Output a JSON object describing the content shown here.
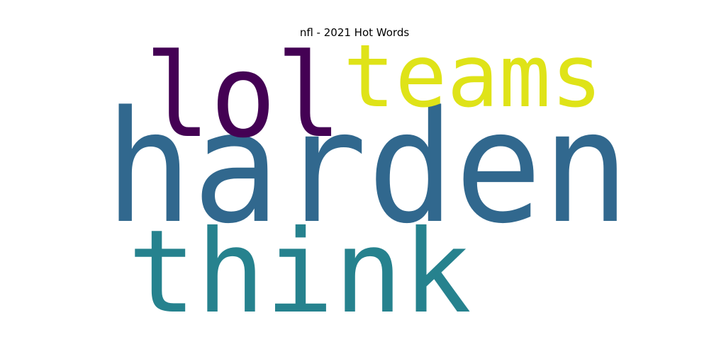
{
  "chart_data": {
    "type": "wordcloud",
    "title": "nfl - 2021 Hot Words",
    "words": [
      {
        "text": "harden",
        "rank": 1,
        "color": "#31688e"
      },
      {
        "text": "think",
        "rank": 2,
        "color": "#26828e"
      },
      {
        "text": "lol",
        "rank": 3,
        "color": "#440154"
      },
      {
        "text": "teams",
        "rank": 4,
        "color": "#dfe318"
      }
    ]
  }
}
